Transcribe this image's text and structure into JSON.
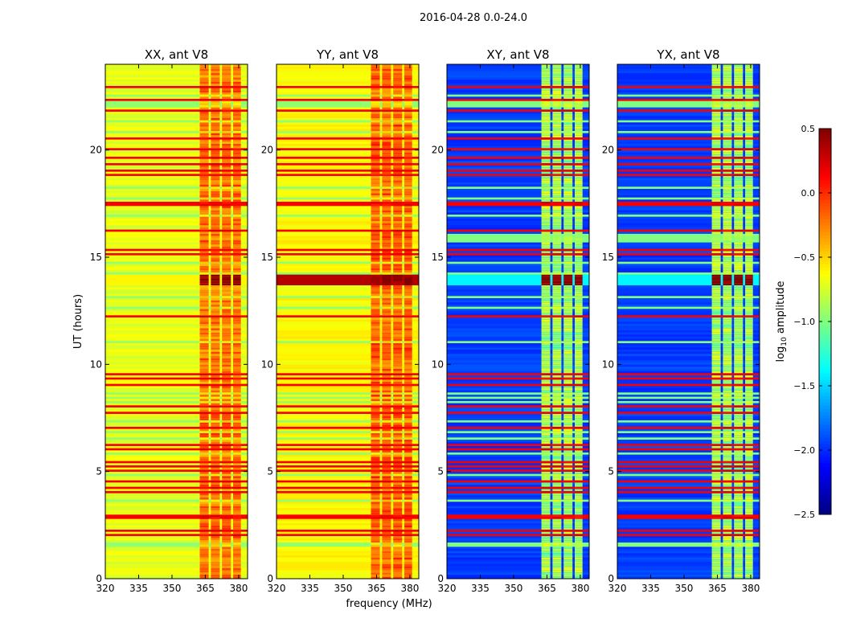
{
  "figure_title": "2016-04-28 0.0-24.0",
  "chart_data": {
    "type": "heatmap",
    "title": "2016-04-28 0.0-24.0",
    "xlabel": "frequency (MHz)",
    "ylabel": "UT (hours)",
    "xlim": [
      320,
      384
    ],
    "ylim": [
      0,
      24
    ],
    "xticks": [
      320,
      335,
      350,
      365,
      380
    ],
    "yticks": [
      0,
      5,
      10,
      15,
      20
    ],
    "colorbar": {
      "label_main": "log",
      "label_sub": "10",
      "label_rest": " amplitude",
      "range": [
        -2.5,
        0.5
      ],
      "ticks": [
        "0.5",
        "0.0",
        "−0.5",
        "−1.0",
        "−1.5",
        "−2.0",
        "−2.5"
      ],
      "tick_values": [
        0.5,
        0.0,
        -0.5,
        -1.0,
        -1.5,
        -2.0,
        -2.5
      ],
      "colormap": "jet"
    },
    "bands_mhz": [
      [
        362.5,
        366.5
      ],
      [
        367.5,
        371.5
      ],
      [
        372.5,
        376.5
      ],
      [
        377.5,
        381.0
      ]
    ],
    "rfi_rows_hours": [
      2.0,
      2.2,
      2.8,
      2.9,
      4.0,
      4.2,
      4.5,
      5.0,
      5.2,
      5.4,
      6.0,
      6.2,
      7.0,
      7.7,
      8.0,
      9.0,
      9.3,
      9.5,
      12.2,
      15.1,
      15.3,
      16.2,
      17.4,
      17.5,
      18.8,
      19.0,
      19.3,
      19.6,
      20.0,
      20.5,
      21.8,
      22.3,
      22.9
    ],
    "bright_rows_hours": [
      1.5,
      1.6,
      3.6,
      4.8,
      5.8,
      6.5,
      6.8,
      7.3,
      8.2,
      8.4,
      8.6,
      11.0,
      12.6,
      13.1,
      14.2,
      14.7,
      16.9,
      17.7,
      18.2,
      20.8,
      21.3,
      22.0,
      22.1,
      22.2,
      22.5
    ],
    "event": {
      "start_hour": 13.6,
      "end_hour": 14.1
    },
    "panels": [
      {
        "title": "XX, ant V8",
        "baseline": -0.7,
        "band_level": -0.2,
        "event_level_band": 0.45,
        "event_level_all": -0.6
      },
      {
        "title": "YY, ant V8",
        "baseline": -0.62,
        "band_level": -0.15,
        "event_level_band": 0.45,
        "event_level_all": 0.35
      },
      {
        "title": "XY, ant V8",
        "baseline": -1.95,
        "band_level": -0.9,
        "event_level_band": 0.45,
        "event_level_all": -1.4
      },
      {
        "title": "YX, ant V8",
        "baseline": -1.95,
        "band_level": -0.9,
        "event_level_band": 0.45,
        "event_level_all": -1.4
      }
    ],
    "green_block_cross_pols_hours": [
      15.6,
      16.0
    ]
  }
}
